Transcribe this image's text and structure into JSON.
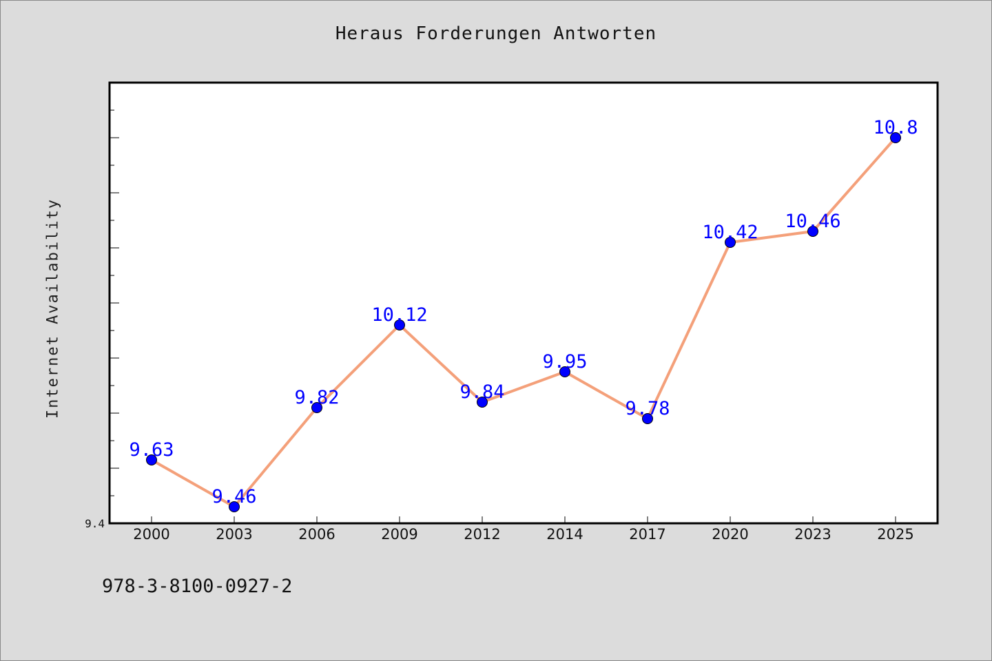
{
  "colors": {
    "background": "#dcdcdc",
    "plot_background": "#ffffff",
    "line": "#f4a07a",
    "marker": "#0000ff",
    "label": "#0000ff"
  },
  "footer": {
    "text": "978-3-8100-0927-2"
  },
  "chart_data": {
    "type": "line",
    "title": "Heraus Forderungen Antworten",
    "xlabel": "",
    "ylabel": "Internet Availability",
    "categories": [
      "2000",
      "2003",
      "2006",
      "2009",
      "2012",
      "2014",
      "2017",
      "2020",
      "2023",
      "2025"
    ],
    "series": [
      {
        "values": [
          9.63,
          9.46,
          9.82,
          10.12,
          9.84,
          9.95,
          9.78,
          10.42,
          10.46,
          10.8
        ]
      }
    ],
    "data_labels": [
      "9.63",
      "9.46",
      "9.82",
      "10.12",
      "9.84",
      "9.95",
      "9.78",
      "10.42",
      "10.46",
      "10.8"
    ],
    "ylim": [
      9.4,
      11.0
    ],
    "y_tick_step": 0.1,
    "y_min_label": "9.4",
    "grid": false,
    "markers": "circle"
  }
}
